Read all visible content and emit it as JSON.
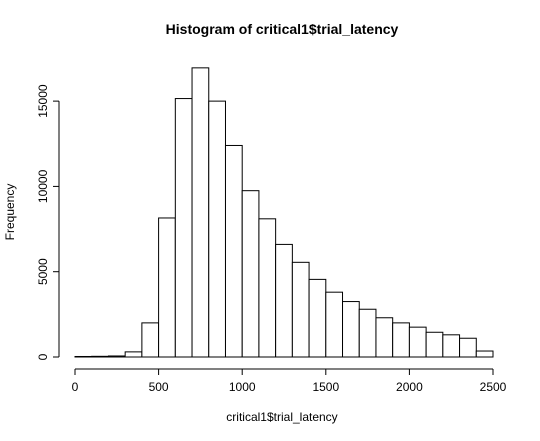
{
  "chart_data": {
    "type": "bar",
    "title": "Histogram of critical1$trial_latency",
    "xlabel": "critical1$trial_latency",
    "ylabel": "Frequency",
    "bin_width": 100,
    "bins_start": [
      0,
      100,
      200,
      300,
      400,
      500,
      600,
      700,
      800,
      900,
      1000,
      1100,
      1200,
      1300,
      1400,
      1500,
      1600,
      1700,
      1800,
      1900,
      2000,
      2100,
      2200,
      2300,
      2400
    ],
    "values": [
      30,
      40,
      60,
      300,
      2000,
      8150,
      15150,
      16950,
      15000,
      12400,
      9750,
      8100,
      6600,
      5550,
      4550,
      3800,
      3250,
      2800,
      2300,
      2000,
      1750,
      1450,
      1300,
      1100,
      350
    ],
    "xlim": [
      0,
      2500
    ],
    "ylim": [
      0,
      17000
    ],
    "x_ticks": [
      0,
      500,
      1000,
      1500,
      2000,
      2500
    ],
    "y_ticks": [
      0,
      5000,
      10000,
      15000
    ],
    "grid": false,
    "bar_fill": "#ffffff",
    "bar_stroke": "#000000"
  }
}
